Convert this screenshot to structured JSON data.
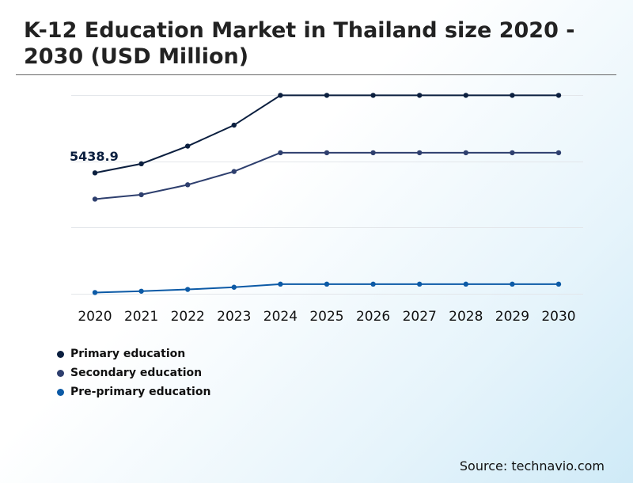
{
  "title": "K-12 Education Market in Thailand size 2020 - 2030 (USD Million)",
  "source": "Source: technavio.com",
  "chart_data": {
    "type": "line",
    "title": "K-12 Education Market in Thailand size 2020 - 2030 (USD Million)",
    "xlabel": "",
    "ylabel": "",
    "categories": [
      "2020",
      "2021",
      "2022",
      "2023",
      "2024",
      "2025",
      "2026",
      "2027",
      "2028",
      "2029",
      "2030"
    ],
    "ylim": [
      0,
      9000
    ],
    "grid": true,
    "legend": "bottom-left",
    "annotation": {
      "series": 0,
      "index": 0,
      "label": "5438.9"
    },
    "series": [
      {
        "name": "Primary education",
        "color": "#0b1f3f",
        "values": [
          5438.9,
          5850,
          6650,
          7600,
          8950,
          8950,
          8950,
          8950,
          8950,
          8950,
          8950
        ]
      },
      {
        "name": "Secondary education",
        "color": "#2e3f6e",
        "values": [
          4250,
          4450,
          4900,
          5500,
          6350,
          6350,
          6350,
          6350,
          6350,
          6350,
          6350
        ]
      },
      {
        "name": "Pre-primary education",
        "color": "#0c5aa6",
        "values": [
          20,
          80,
          160,
          260,
          400,
          400,
          400,
          400,
          400,
          400,
          400
        ]
      }
    ]
  }
}
